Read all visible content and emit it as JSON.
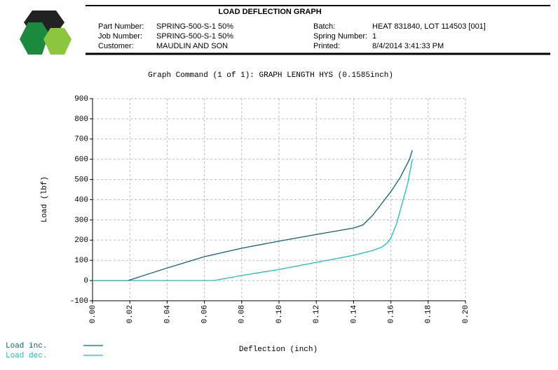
{
  "header": {
    "title": "LOAD DEFLECTION GRAPH",
    "left": [
      [
        "Part Number:",
        "SPRING-500-S-1 50%"
      ],
      [
        "Job Number:",
        "SPRING-500-S-1 50%"
      ],
      [
        "Customer:",
        "MAUDLIN AND SON"
      ]
    ],
    "right": [
      [
        "Batch:",
        "HEAT 831840, LOT 114503 [001]"
      ],
      [
        "Spring Number:",
        "1"
      ],
      [
        "Printed:",
        "8/4/2014 3:41:33 PM"
      ]
    ]
  },
  "chart_data": {
    "type": "line",
    "title": "Graph Command (1 of 1): GRAPH LENGTH HYS (0.1585inch)",
    "x_label": "Deflection (inch)",
    "y_label": "Load (lbf)",
    "grid": true,
    "xlim": [
      0,
      0.2
    ],
    "ylim": [
      -100,
      900
    ],
    "xticks": [
      {
        "value": 0,
        "label": "0.00"
      },
      {
        "value": 0.02,
        "label": "0.02"
      },
      {
        "value": 0.04,
        "label": "0.04"
      },
      {
        "value": 0.06,
        "label": "0.06"
      },
      {
        "value": 0.08,
        "label": "0.08"
      },
      {
        "value": 0.1,
        "label": "0.10"
      },
      {
        "value": 0.12,
        "label": "0.12"
      },
      {
        "value": 0.14,
        "label": "0.14"
      },
      {
        "value": 0.16,
        "label": "0.16"
      },
      {
        "value": 0.18,
        "label": "0.18"
      },
      {
        "value": 0.2,
        "label": "0.20"
      }
    ],
    "yticks": [
      -100,
      0,
      100,
      200,
      300,
      400,
      500,
      600,
      700,
      800,
      900
    ],
    "series": [
      {
        "name": "Load inc.",
        "color": "#14606e",
        "x": [
          0,
          0.0188,
          0.02,
          0.04,
          0.06,
          0.08,
          0.1,
          0.12,
          0.14,
          0.145,
          0.15,
          0.155,
          0.16,
          0.165,
          0.17,
          0.1715
        ],
        "values": [
          0,
          0,
          3,
          62,
          118,
          160,
          195,
          228,
          260,
          275,
          320,
          380,
          440,
          510,
          600,
          645
        ]
      },
      {
        "name": "Load dec.",
        "color": "#1fbcbc",
        "x": [
          0,
          0.065,
          0.08,
          0.1,
          0.12,
          0.14,
          0.15,
          0.155,
          0.158,
          0.16,
          0.163,
          0.166,
          0.169,
          0.1715
        ],
        "values": [
          0,
          0,
          25,
          55,
          90,
          125,
          148,
          165,
          185,
          210,
          280,
          380,
          480,
          600
        ]
      }
    ]
  }
}
